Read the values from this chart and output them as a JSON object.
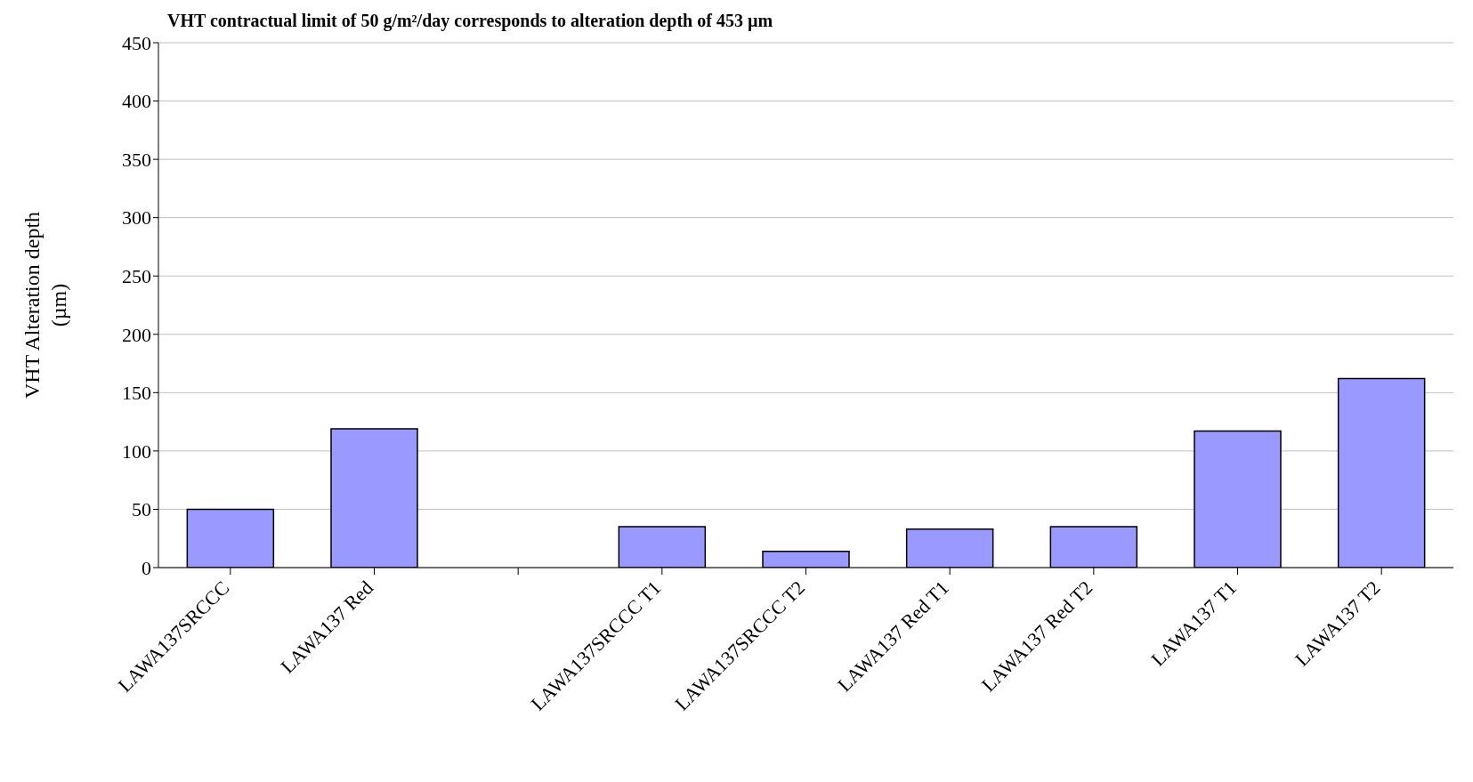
{
  "chart_data": {
    "type": "bar",
    "title": "VHT contractual limit of 50 g/m²/day corresponds to alteration depth of 453 µm",
    "ylabel": "VHT Alteration depth (µm)",
    "categories": [
      "LAWA137SRCCC",
      "LAWA137 Red",
      null,
      "LAWA137SRCCC T1",
      "LAWA137SRCCC T2",
      "LAWA137 Red T1",
      "LAWA137 Red T2",
      "LAWA137  T1",
      "LAWA137  T2"
    ],
    "values": [
      50,
      119,
      null,
      35,
      14,
      33,
      35,
      117,
      162
    ],
    "color": "#9999ff",
    "ylim": [
      0,
      450
    ],
    "yticks": [
      0,
      50,
      100,
      150,
      200,
      250,
      300,
      350,
      400,
      450
    ],
    "grid": "y",
    "legend": false
  }
}
